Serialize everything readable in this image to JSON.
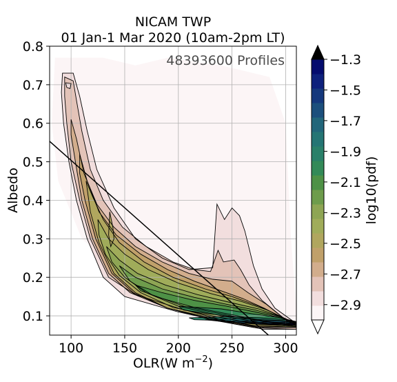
{
  "chart_data": {
    "type": "contour",
    "title": "NICAM TWP",
    "subtitle": "01 Jan-1 Mar 2020 (10am-2pm LT)",
    "annotation": "48393600 Profiles",
    "xlabel_main": "OLR(W m",
    "xlabel_sup": "−2",
    "xlabel_close": ")",
    "ylabel": "Albedo",
    "xlim": [
      80,
      310
    ],
    "ylim": [
      0.05,
      0.8
    ],
    "xticks": [
      {
        "value": 100,
        "label": "100"
      },
      {
        "value": 150,
        "label": "150"
      },
      {
        "value": 200,
        "label": "200"
      },
      {
        "value": 250,
        "label": "250"
      },
      {
        "value": 300,
        "label": "300"
      }
    ],
    "yticks": [
      {
        "value": 0.1,
        "label": "0.1"
      },
      {
        "value": 0.2,
        "label": "0.2"
      },
      {
        "value": 0.3,
        "label": "0.3"
      },
      {
        "value": 0.4,
        "label": "0.4"
      },
      {
        "value": 0.5,
        "label": "0.5"
      },
      {
        "value": 0.6,
        "label": "0.6"
      },
      {
        "value": 0.7,
        "label": "0.7"
      },
      {
        "value": 0.8,
        "label": "0.8"
      }
    ],
    "grid": true,
    "reference_line": {
      "x": [
        80,
        290
      ],
      "y": [
        0.553,
        0.035
      ]
    },
    "colorbar": {
      "label": "log10(pdf)",
      "vmin": -3.0,
      "vmax": -1.3,
      "ticks": [
        {
          "value": -1.3,
          "label": "−1.3"
        },
        {
          "value": -1.5,
          "label": "−1.5"
        },
        {
          "value": -1.7,
          "label": "−1.7"
        },
        {
          "value": -1.9,
          "label": "−1.9"
        },
        {
          "value": -2.1,
          "label": "−2.1"
        },
        {
          "value": -2.3,
          "label": "−2.3"
        },
        {
          "value": -2.5,
          "label": "−2.5"
        },
        {
          "value": -2.7,
          "label": "−2.7"
        },
        {
          "value": -2.9,
          "label": "−2.9"
        }
      ],
      "colors": [
        "#fcf5f6",
        "#f2dede",
        "#e3c3b8",
        "#d2ad8c",
        "#c0a06a",
        "#b0a65e",
        "#a0ac5a",
        "#8ea554",
        "#6e9c4c",
        "#4e9146",
        "#338a58",
        "#2a8069",
        "#257574",
        "#22667a",
        "#1c4f7c",
        "#15387c",
        "#0e217c",
        "#050c6e"
      ],
      "extend": "both"
    },
    "levels": [
      {
        "level": -3.0,
        "points": [
          [
            85,
            0.77
          ],
          [
            130,
            0.77
          ],
          [
            160,
            0.75
          ],
          [
            190,
            0.77
          ],
          [
            240,
            0.75
          ],
          [
            285,
            0.72
          ],
          [
            300,
            0.6
          ],
          [
            305,
            0.3
          ],
          [
            310,
            0.12
          ],
          [
            310,
            0.08
          ],
          [
            250,
            0.1
          ],
          [
            200,
            0.14
          ],
          [
            150,
            0.2
          ],
          [
            110,
            0.3
          ],
          [
            88,
            0.45
          ],
          [
            82,
            0.6
          ]
        ]
      },
      {
        "level": -2.9,
        "points": [
          [
            92,
            0.73
          ],
          [
            102,
            0.73
          ],
          [
            108,
            0.67
          ],
          [
            115,
            0.58
          ],
          [
            124,
            0.48
          ],
          [
            140,
            0.38
          ],
          [
            160,
            0.3
          ],
          [
            185,
            0.25
          ],
          [
            210,
            0.22
          ],
          [
            232,
            0.225
          ],
          [
            236,
            0.39
          ],
          [
            243,
            0.35
          ],
          [
            250,
            0.38
          ],
          [
            257,
            0.36
          ],
          [
            262,
            0.32
          ],
          [
            270,
            0.23
          ],
          [
            278,
            0.17
          ],
          [
            290,
            0.12
          ],
          [
            310,
            0.08
          ],
          [
            310,
            0.065
          ],
          [
            280,
            0.065
          ],
          [
            250,
            0.08
          ],
          [
            200,
            0.11
          ],
          [
            150,
            0.15
          ],
          [
            130,
            0.2
          ],
          [
            115,
            0.3
          ],
          [
            105,
            0.4
          ],
          [
            98,
            0.5
          ],
          [
            93,
            0.6
          ],
          [
            91,
            0.68
          ]
        ]
      },
      {
        "level": -2.8,
        "points": [
          [
            94,
            0.72
          ],
          [
            102,
            0.71
          ],
          [
            105,
            0.66
          ],
          [
            110,
            0.58
          ],
          [
            118,
            0.48
          ],
          [
            130,
            0.4
          ],
          [
            148,
            0.33
          ],
          [
            170,
            0.28
          ],
          [
            195,
            0.24
          ],
          [
            215,
            0.22
          ],
          [
            230,
            0.215
          ],
          [
            237,
            0.27
          ],
          [
            242,
            0.24
          ],
          [
            252,
            0.245
          ],
          [
            258,
            0.22
          ],
          [
            266,
            0.18
          ],
          [
            278,
            0.14
          ],
          [
            300,
            0.09
          ],
          [
            310,
            0.075
          ],
          [
            310,
            0.065
          ],
          [
            280,
            0.068
          ],
          [
            240,
            0.09
          ],
          [
            200,
            0.12
          ],
          [
            160,
            0.155
          ],
          [
            135,
            0.2
          ],
          [
            118,
            0.3
          ],
          [
            108,
            0.4
          ],
          [
            100,
            0.5
          ],
          [
            96,
            0.6
          ],
          [
            94,
            0.67
          ]
        ]
      },
      {
        "level": -2.7,
        "points": [
          [
            100,
            0.61
          ],
          [
            105,
            0.56
          ],
          [
            112,
            0.47
          ],
          [
            124,
            0.39
          ],
          [
            140,
            0.33
          ],
          [
            160,
            0.28
          ],
          [
            185,
            0.24
          ],
          [
            210,
            0.21
          ],
          [
            232,
            0.195
          ],
          [
            250,
            0.19
          ],
          [
            265,
            0.16
          ],
          [
            282,
            0.13
          ],
          [
            300,
            0.09
          ],
          [
            310,
            0.075
          ],
          [
            310,
            0.07
          ],
          [
            270,
            0.07
          ],
          [
            230,
            0.09
          ],
          [
            190,
            0.12
          ],
          [
            155,
            0.16
          ],
          [
            135,
            0.21
          ],
          [
            120,
            0.3
          ],
          [
            110,
            0.4
          ],
          [
            104,
            0.5
          ],
          [
            100,
            0.57
          ]
        ]
      },
      {
        "level": -2.6,
        "points": [
          [
            108,
            0.52
          ],
          [
            115,
            0.45
          ],
          [
            126,
            0.37
          ],
          [
            142,
            0.31
          ],
          [
            165,
            0.26
          ],
          [
            190,
            0.22
          ],
          [
            215,
            0.19
          ],
          [
            240,
            0.165
          ],
          [
            260,
            0.145
          ],
          [
            280,
            0.12
          ],
          [
            300,
            0.09
          ],
          [
            310,
            0.075
          ],
          [
            310,
            0.07
          ],
          [
            270,
            0.072
          ],
          [
            230,
            0.092
          ],
          [
            190,
            0.12
          ],
          [
            158,
            0.16
          ],
          [
            138,
            0.21
          ],
          [
            123,
            0.3
          ],
          [
            113,
            0.4
          ],
          [
            108,
            0.47
          ]
        ]
      },
      {
        "level": -2.5,
        "points": [
          [
            114,
            0.45
          ],
          [
            120,
            0.41
          ],
          [
            130,
            0.35
          ],
          [
            145,
            0.29
          ],
          [
            168,
            0.24
          ],
          [
            195,
            0.2
          ],
          [
            225,
            0.17
          ],
          [
            250,
            0.15
          ],
          [
            275,
            0.125
          ],
          [
            298,
            0.095
          ],
          [
            310,
            0.078
          ],
          [
            310,
            0.07
          ],
          [
            270,
            0.075
          ],
          [
            230,
            0.095
          ],
          [
            190,
            0.12
          ],
          [
            160,
            0.16
          ],
          [
            140,
            0.21
          ],
          [
            126,
            0.29
          ],
          [
            118,
            0.37
          ]
        ]
      },
      {
        "level": -2.4,
        "points": [
          [
            125,
            0.35
          ],
          [
            135,
            0.3
          ],
          [
            150,
            0.26
          ],
          [
            172,
            0.22
          ],
          [
            200,
            0.185
          ],
          [
            230,
            0.158
          ],
          [
            258,
            0.138
          ],
          [
            283,
            0.115
          ],
          [
            302,
            0.09
          ],
          [
            310,
            0.078
          ],
          [
            310,
            0.072
          ],
          [
            275,
            0.078
          ],
          [
            235,
            0.098
          ],
          [
            195,
            0.122
          ],
          [
            165,
            0.16
          ],
          [
            145,
            0.205
          ],
          [
            132,
            0.26
          ],
          [
            126,
            0.31
          ]
        ]
      },
      {
        "level": -2.3,
        "points": [
          [
            133,
            0.28
          ],
          [
            145,
            0.245
          ],
          [
            162,
            0.21
          ],
          [
            188,
            0.18
          ],
          [
            218,
            0.155
          ],
          [
            248,
            0.135
          ],
          [
            275,
            0.118
          ],
          [
            298,
            0.095
          ],
          [
            310,
            0.08
          ],
          [
            310,
            0.073
          ],
          [
            278,
            0.082
          ],
          [
            240,
            0.1
          ],
          [
            200,
            0.125
          ],
          [
            170,
            0.16
          ],
          [
            150,
            0.2
          ],
          [
            138,
            0.24
          ]
        ]
      },
      {
        "level": -2.2,
        "points": [
          [
            145,
            0.23
          ],
          [
            160,
            0.2
          ],
          [
            185,
            0.17
          ],
          [
            215,
            0.148
          ],
          [
            245,
            0.13
          ],
          [
            272,
            0.115
          ],
          [
            295,
            0.097
          ],
          [
            310,
            0.082
          ],
          [
            310,
            0.075
          ],
          [
            280,
            0.085
          ],
          [
            245,
            0.102
          ],
          [
            205,
            0.125
          ],
          [
            175,
            0.155
          ],
          [
            155,
            0.19
          ]
        ]
      },
      {
        "level": -2.1,
        "points": [
          [
            160,
            0.18
          ],
          [
            185,
            0.16
          ],
          [
            215,
            0.14
          ],
          [
            245,
            0.125
          ],
          [
            272,
            0.11
          ],
          [
            295,
            0.095
          ],
          [
            310,
            0.083
          ],
          [
            310,
            0.076
          ],
          [
            282,
            0.086
          ],
          [
            250,
            0.103
          ],
          [
            215,
            0.122
          ],
          [
            185,
            0.145
          ],
          [
            165,
            0.165
          ]
        ]
      },
      {
        "level": -2.0,
        "points": [
          [
            200,
            0.125
          ],
          [
            240,
            0.118
          ],
          [
            270,
            0.105
          ],
          [
            295,
            0.095
          ],
          [
            310,
            0.085
          ],
          [
            310,
            0.076
          ],
          [
            290,
            0.082
          ],
          [
            260,
            0.095
          ],
          [
            230,
            0.105
          ],
          [
            205,
            0.115
          ]
        ]
      },
      {
        "level": -1.9,
        "points": [
          [
            210,
            0.095
          ],
          [
            245,
            0.098
          ],
          [
            275,
            0.095
          ],
          [
            300,
            0.09
          ],
          [
            310,
            0.085
          ],
          [
            310,
            0.076
          ],
          [
            295,
            0.078
          ],
          [
            270,
            0.084
          ],
          [
            240,
            0.088
          ],
          [
            215,
            0.09
          ]
        ]
      },
      {
        "level": -1.8,
        "points": [
          [
            225,
            0.09
          ],
          [
            255,
            0.093
          ],
          [
            280,
            0.09
          ],
          [
            300,
            0.087
          ],
          [
            310,
            0.083
          ],
          [
            310,
            0.076
          ],
          [
            295,
            0.077
          ],
          [
            270,
            0.081
          ],
          [
            245,
            0.084
          ]
        ]
      },
      {
        "level": -1.7,
        "points": [
          [
            245,
            0.085
          ],
          [
            270,
            0.088
          ],
          [
            292,
            0.087
          ],
          [
            310,
            0.083
          ],
          [
            310,
            0.076
          ],
          [
            292,
            0.077
          ],
          [
            270,
            0.079
          ]
        ]
      },
      {
        "level": -1.6,
        "points": [
          [
            262,
            0.082
          ],
          [
            282,
            0.084
          ],
          [
            300,
            0.083
          ],
          [
            310,
            0.081
          ],
          [
            310,
            0.076
          ],
          [
            295,
            0.077
          ],
          [
            278,
            0.078
          ]
        ]
      },
      {
        "level": -1.4,
        "points": [
          [
            278,
            0.08
          ],
          [
            295,
            0.081
          ],
          [
            310,
            0.08
          ],
          [
            310,
            0.076
          ],
          [
            296,
            0.077
          ]
        ]
      },
      {
        "level": -1.3,
        "points": [
          [
            290,
            0.079
          ],
          [
            305,
            0.08
          ],
          [
            310,
            0.079
          ],
          [
            310,
            0.076
          ],
          [
            300,
            0.077
          ]
        ]
      }
    ],
    "secondary_blobs": [
      {
        "level": -2.5,
        "points": [
          [
            136,
            0.37
          ],
          [
            139,
            0.33
          ],
          [
            140,
            0.3
          ],
          [
            137,
            0.28
          ],
          [
            135,
            0.31
          ]
        ]
      },
      {
        "level": -2.9,
        "points": [
          [
            95,
            0.705
          ],
          [
            100,
            0.703
          ],
          [
            99,
            0.69
          ],
          [
            96,
            0.693
          ]
        ]
      }
    ]
  }
}
